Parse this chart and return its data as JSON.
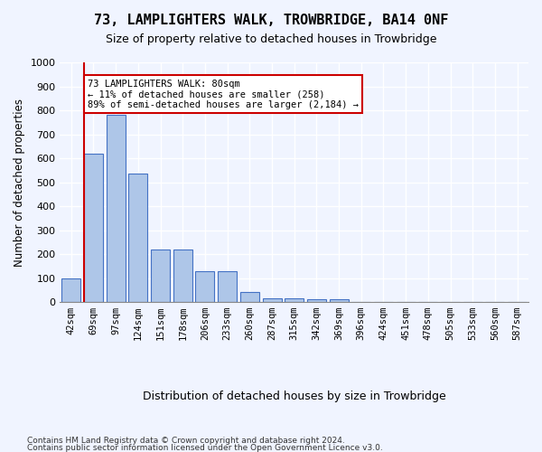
{
  "title": "73, LAMPLIGHTERS WALK, TROWBRIDGE, BA14 0NF",
  "subtitle": "Size of property relative to detached houses in Trowbridge",
  "xlabel": "Distribution of detached houses by size in Trowbridge",
  "ylabel": "Number of detached properties",
  "bar_color": "#aec6e8",
  "bar_edge_color": "#4472c4",
  "categories": [
    "42sqm",
    "69sqm",
    "97sqm",
    "124sqm",
    "151sqm",
    "178sqm",
    "206sqm",
    "233sqm",
    "260sqm",
    "287sqm",
    "315sqm",
    "342sqm",
    "369sqm",
    "396sqm",
    "424sqm",
    "451sqm",
    "478sqm",
    "505sqm",
    "533sqm",
    "560sqm",
    "587sqm"
  ],
  "values": [
    100,
    620,
    780,
    535,
    220,
    220,
    130,
    130,
    40,
    15,
    15,
    10,
    10,
    0,
    0,
    0,
    0,
    0,
    0,
    0,
    0
  ],
  "ylim": [
    0,
    1000
  ],
  "yticks": [
    0,
    100,
    200,
    300,
    400,
    500,
    600,
    700,
    800,
    900,
    1000
  ],
  "property_line_x": 1,
  "annotation_text": "73 LAMPLIGHTERS WALK: 80sqm\n← 11% of detached houses are smaller (258)\n89% of semi-detached houses are larger (2,184) →",
  "annotation_box_color": "#ffffff",
  "annotation_box_edge": "#cc0000",
  "line_color": "#cc0000",
  "footer_line1": "Contains HM Land Registry data © Crown copyright and database right 2024.",
  "footer_line2": "Contains public sector information licensed under the Open Government Licence v3.0.",
  "background_color": "#f0f4ff",
  "grid_color": "#ffffff"
}
